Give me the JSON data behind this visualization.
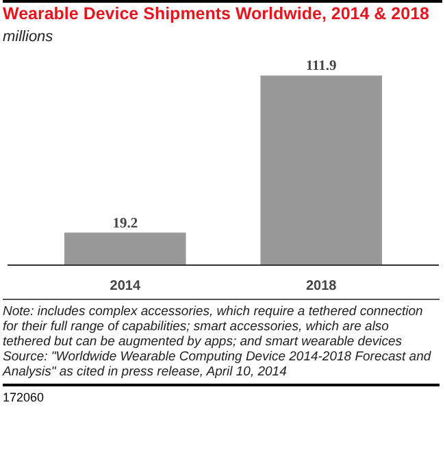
{
  "chart_data": {
    "type": "bar",
    "title": "Wearable Device Shipments Worldwide, 2014 & 2018",
    "subtitle": "millions",
    "categories": [
      "2014",
      "2018"
    ],
    "values": [
      19.2,
      111.9
    ],
    "color": "#999999",
    "data_labels": true,
    "grid": false,
    "annotations": [
      "Note: includes complex accessories, which require a tethered connection for their full range of capabilities; smart accessories, which are also tethered but can be augmented by apps; and smart wearable devices",
      "Source: \"Worldwide Wearable Computing Device 2014-2018 Forecast and Analysis\" as cited in press release, April 10, 2014",
      "172060"
    ]
  }
}
